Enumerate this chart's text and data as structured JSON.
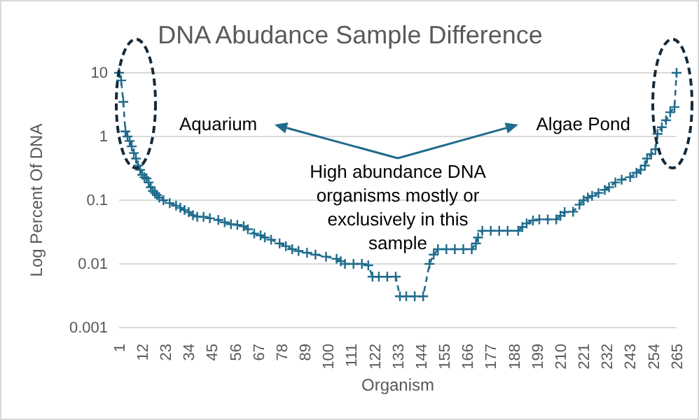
{
  "chart_data": {
    "type": "line",
    "title": "DNA Abudance Sample Difference",
    "xlabel": "Organism",
    "ylabel": "Log Percent Of DNA",
    "annotations": [
      "Aquarium",
      "Algae Pond",
      "High abundance DNA\norganisms mostly or\nexclusively in this\nsample"
    ],
    "log": "y",
    "grid": "y",
    "marker": "cross",
    "line_style": "dashed",
    "xlim": [
      1,
      265
    ],
    "xticks": [
      1,
      12,
      23,
      34,
      45,
      56,
      67,
      78,
      89,
      100,
      111,
      122,
      133,
      144,
      155,
      166,
      177,
      188,
      199,
      210,
      221,
      232,
      243,
      254,
      265
    ],
    "ylim": [
      0.001,
      10
    ],
    "yticks": [
      0.001,
      0.01,
      0.1,
      1,
      10
    ],
    "series": [
      {
        "color": "#1f6b8c",
        "x": [
          1,
          2,
          3,
          4,
          5,
          6,
          7,
          8,
          9,
          10,
          11,
          12,
          13,
          14,
          15,
          16,
          17,
          18,
          19,
          20,
          22,
          25,
          28,
          30,
          32,
          34,
          36,
          38,
          41,
          44,
          48,
          51,
          54,
          57,
          60,
          62,
          65,
          68,
          70,
          73,
          77,
          80,
          83,
          86,
          90,
          94,
          99,
          104,
          106,
          108,
          112,
          116,
          119,
          121,
          124,
          128,
          132,
          134,
          137,
          141,
          145,
          148,
          150,
          152,
          156,
          160,
          164,
          168,
          170,
          171,
          173,
          177,
          181,
          185,
          190,
          192,
          194,
          197,
          200,
          204,
          208,
          210,
          212,
          216,
          219,
          221,
          223,
          225,
          228,
          231,
          233,
          236,
          239,
          243,
          246,
          248,
          250,
          251,
          253,
          255,
          256,
          258,
          260,
          262,
          264,
          265
        ],
        "values": [
          10,
          7.6,
          3.5,
          1.2,
          1.0,
          0.85,
          0.7,
          0.55,
          0.45,
          0.35,
          0.3,
          0.25,
          0.23,
          0.22,
          0.19,
          0.16,
          0.14,
          0.13,
          0.12,
          0.11,
          0.1,
          0.09,
          0.082,
          0.076,
          0.07,
          0.065,
          0.058,
          0.055,
          0.055,
          0.052,
          0.049,
          0.045,
          0.042,
          0.041,
          0.039,
          0.035,
          0.03,
          0.028,
          0.026,
          0.024,
          0.021,
          0.019,
          0.017,
          0.016,
          0.015,
          0.014,
          0.013,
          0.012,
          0.011,
          0.01,
          0.01,
          0.01,
          0.0095,
          0.0063,
          0.0063,
          0.0063,
          0.0063,
          0.0031,
          0.0031,
          0.0031,
          0.0031,
          0.01,
          0.014,
          0.017,
          0.017,
          0.017,
          0.017,
          0.017,
          0.021,
          0.026,
          0.033,
          0.033,
          0.033,
          0.033,
          0.033,
          0.038,
          0.043,
          0.048,
          0.05,
          0.05,
          0.05,
          0.057,
          0.065,
          0.066,
          0.085,
          0.1,
          0.11,
          0.117,
          0.13,
          0.145,
          0.16,
          0.19,
          0.21,
          0.23,
          0.27,
          0.3,
          0.35,
          0.45,
          0.53,
          0.63,
          1.1,
          1.4,
          1.8,
          2.4,
          2.9,
          10
        ]
      }
    ]
  }
}
